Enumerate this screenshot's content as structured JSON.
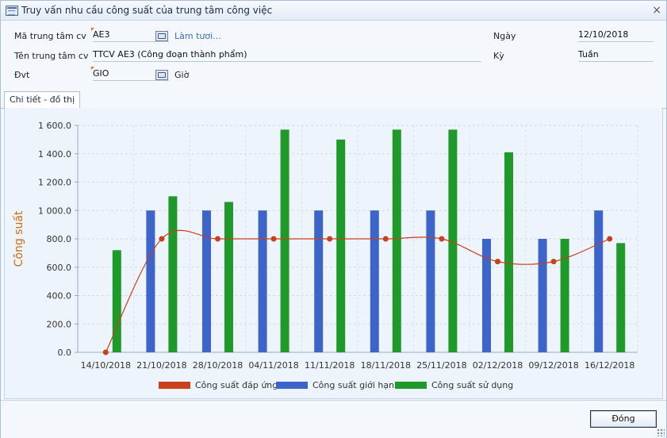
{
  "window": {
    "title": "Truy vấn nhu cầu công suất của trung tâm công việc",
    "close_glyph": "×"
  },
  "form": {
    "ma_label": "Mã trung tâm cv",
    "ma_value": "AE3",
    "refresh_link": "Làm tươi...",
    "ten_label": "Tên trung tâm cv",
    "ten_value": "TTCV AE3 (Công đoạn thành phẩm)",
    "dvt_label": "Đvt",
    "dvt_value": "GIO",
    "dvt_name": "Giờ",
    "ngay_label": "Ngày",
    "ngay_value": "12/10/2018",
    "ky_label": "Kỳ",
    "ky_value": "Tuần"
  },
  "tabs": [
    {
      "label": "Chi tiết - đồ thị"
    }
  ],
  "footer": {
    "close_label": "Đóng"
  },
  "chart_data": {
    "type": "bar",
    "title": "",
    "xlabel": "",
    "ylabel": "Công suất",
    "ylim": [
      0,
      1600
    ],
    "yticks": [
      "0.0",
      "200.0",
      "400.0",
      "600.0",
      "800.0",
      "1 000.0",
      "1 200.0",
      "1 400.0",
      "1 600.0"
    ],
    "grid": true,
    "legend_position": "bottom",
    "categories": [
      "14/10/2018",
      "21/10/2018",
      "28/10/2018",
      "04/11/2018",
      "11/11/2018",
      "18/11/2018",
      "25/11/2018",
      "02/12/2018",
      "09/12/2018",
      "16/12/2018"
    ],
    "series": [
      {
        "name": "Công suất đáp ứng",
        "kind": "line",
        "color": "#c8401c",
        "values": [
          0,
          800,
          800,
          800,
          800,
          800,
          800,
          640,
          640,
          800
        ]
      },
      {
        "name": "Công suất giới hạn",
        "kind": "bar",
        "color": "#3d64c8",
        "values": [
          0,
          1000,
          1000,
          1000,
          1000,
          1000,
          1000,
          800,
          800,
          1000
        ]
      },
      {
        "name": "Công suất sử dụng",
        "kind": "bar",
        "color": "#1f9a2a",
        "values": [
          720,
          1100,
          1060,
          1570,
          1500,
          1570,
          1570,
          1410,
          800,
          770
        ]
      }
    ]
  }
}
